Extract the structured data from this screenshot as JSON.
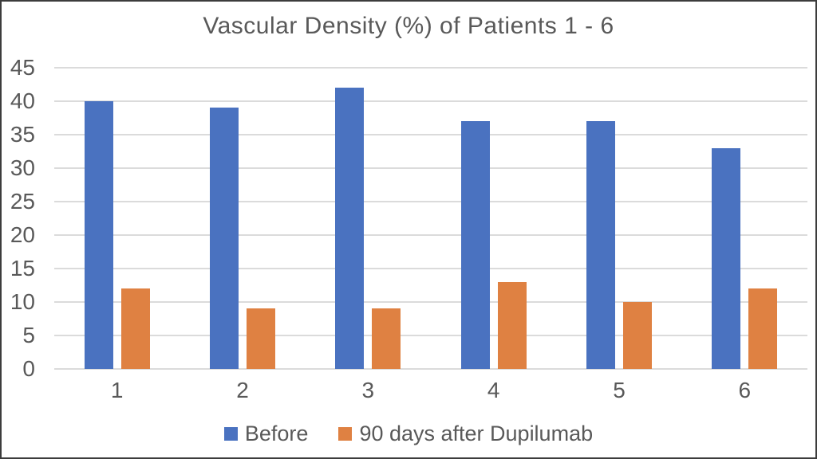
{
  "chart_data": {
    "type": "bar",
    "title": "Vascular Density (%) of Patients 1 - 6",
    "categories": [
      "1",
      "2",
      "3",
      "4",
      "5",
      "6"
    ],
    "series": [
      {
        "name": "Before",
        "color": "#4A72C0",
        "values": [
          40,
          39,
          42,
          37,
          37,
          33
        ]
      },
      {
        "name": "90 days after Dupilumab",
        "color": "#DF8142",
        "values": [
          12,
          9,
          9,
          13,
          10,
          12
        ]
      }
    ],
    "xlabel": "",
    "ylabel": "",
    "ylim": [
      0,
      45
    ],
    "yticks": [
      0,
      5,
      10,
      15,
      20,
      25,
      30,
      35,
      40,
      45
    ],
    "grid": true,
    "legend_position": "bottom",
    "colors": {
      "grid_line": "#DBDBDB",
      "axis_text": "#595959",
      "title_text": "#595959",
      "background": "#FFFFFF",
      "frame_border": "#3C3C3C"
    }
  }
}
